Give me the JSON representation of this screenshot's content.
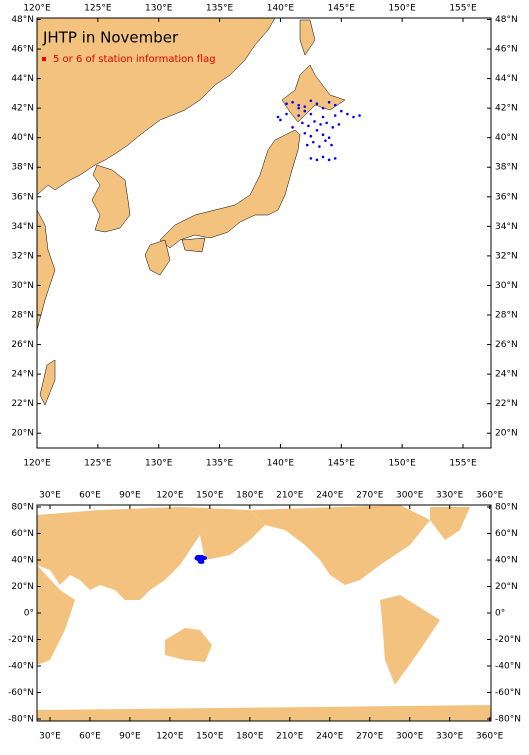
{
  "maps": [
    {
      "title": "JHTP in November",
      "legend": "5 or 6 of station information flag",
      "legend_color": "#ff0000",
      "land_color": "#f2c27e",
      "xlim": [
        120,
        157.3
      ],
      "ylim": [
        19,
        48.1
      ],
      "xticks": [
        {
          "value": 120,
          "label": "120°E"
        },
        {
          "value": 125,
          "label": "125°E"
        },
        {
          "value": 130,
          "label": "130°E"
        },
        {
          "value": 135,
          "label": "135°E"
        },
        {
          "value": 140,
          "label": "140°E"
        },
        {
          "value": 145,
          "label": "145°E"
        },
        {
          "value": 150,
          "label": "150°E"
        },
        {
          "value": 155,
          "label": "155°E"
        }
      ],
      "yticks": [
        {
          "value": 20,
          "label": "20°N"
        },
        {
          "value": 22,
          "label": "22°N"
        },
        {
          "value": 24,
          "label": "24°N"
        },
        {
          "value": 26,
          "label": "26°N"
        },
        {
          "value": 28,
          "label": "28°N"
        },
        {
          "value": 30,
          "label": "30°N"
        },
        {
          "value": 32,
          "label": "32°N"
        },
        {
          "value": 34,
          "label": "34°N"
        },
        {
          "value": 36,
          "label": "36°N"
        },
        {
          "value": 38,
          "label": "38°N"
        },
        {
          "value": 40,
          "label": "40°N"
        },
        {
          "value": 42,
          "label": "42°N"
        },
        {
          "value": 44,
          "label": "44°N"
        },
        {
          "value": 46,
          "label": "46°N"
        },
        {
          "value": 48,
          "label": "48°N"
        }
      ],
      "stations": {
        "color": "#0000ff",
        "lon": [
          140.5,
          141.0,
          141.5,
          142.0,
          142.5,
          143.0,
          143.5,
          144.0,
          144.5,
          145.0,
          141.5,
          142.5,
          143.5,
          144.5,
          145.5,
          141.8,
          142.3,
          142.8,
          143.3,
          143.8,
          144.3,
          144.8,
          142.0,
          142.5,
          143.0,
          143.5,
          144.0,
          142.2,
          142.7,
          143.2,
          143.7,
          144.2,
          142.5,
          143.0,
          143.5,
          144.0,
          144.5,
          140.0,
          140.5,
          139.8,
          146.0,
          146.5,
          141.0,
          141.5,
          142.0
        ],
        "lat": [
          42.3,
          42.4,
          42.2,
          42.1,
          42.5,
          42.3,
          42.0,
          42.4,
          42.2,
          41.8,
          41.5,
          41.6,
          41.4,
          41.5,
          41.6,
          41.0,
          40.8,
          41.1,
          40.9,
          41.0,
          40.7,
          40.9,
          40.3,
          40.1,
          40.5,
          40.2,
          40.0,
          39.5,
          39.7,
          39.4,
          39.8,
          39.5,
          38.6,
          38.5,
          38.7,
          38.5,
          38.6,
          41.2,
          41.6,
          41.4,
          41.4,
          41.5,
          40.7,
          42.0,
          41.8
        ]
      }
    },
    {
      "xlim": [
        20.25,
        361
      ],
      "ylim": [
        -81.5,
        81.5
      ],
      "xticks": [
        {
          "value": 30,
          "label": "30°E"
        },
        {
          "value": 60,
          "label": "60°E"
        },
        {
          "value": 90,
          "label": "90°E"
        },
        {
          "value": 120,
          "label": "120°E"
        },
        {
          "value": 150,
          "label": "150°E"
        },
        {
          "value": 180,
          "label": "180°E"
        },
        {
          "value": 210,
          "label": "210°E"
        },
        {
          "value": 240,
          "label": "240°E"
        },
        {
          "value": 270,
          "label": "270°E"
        },
        {
          "value": 300,
          "label": "300°E"
        },
        {
          "value": 330,
          "label": "330°E"
        },
        {
          "value": 360,
          "label": "360°E"
        }
      ],
      "yticks": [
        {
          "value": 80,
          "label": "80°N"
        },
        {
          "value": 60,
          "label": "60°N"
        },
        {
          "value": 40,
          "label": "40°N"
        },
        {
          "value": 20,
          "label": "20°N"
        },
        {
          "value": 0,
          "label": "0°"
        },
        {
          "value": -20,
          "label": "-20°N"
        },
        {
          "value": -40,
          "label": "-40°N"
        },
        {
          "value": -60,
          "label": "-60°N"
        },
        {
          "value": -80,
          "label": "-80°N"
        }
      ]
    }
  ]
}
